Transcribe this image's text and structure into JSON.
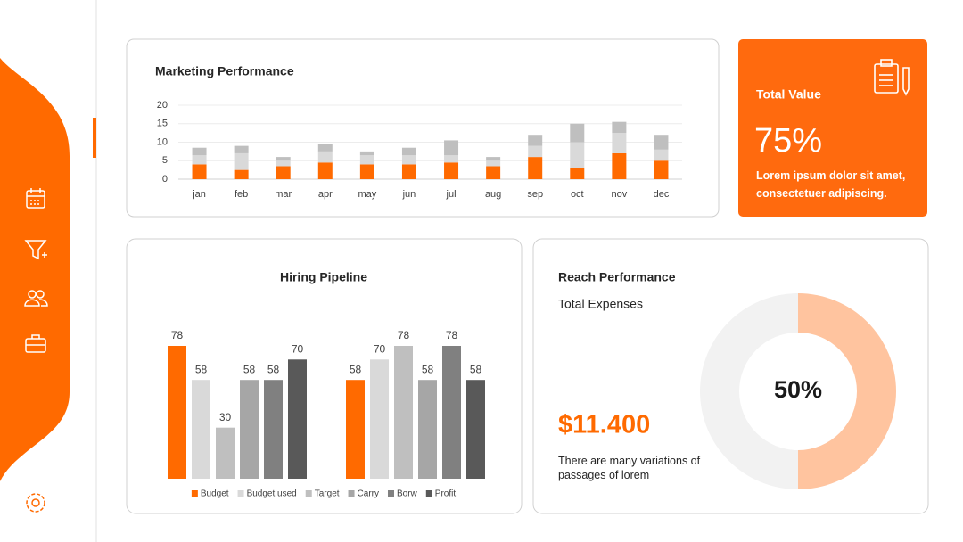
{
  "chart_data": [
    {
      "type": "bar",
      "stacked": true,
      "title": "Marketing Performance",
      "categories": [
        "jan",
        "feb",
        "mar",
        "apr",
        "may",
        "jun",
        "jul",
        "aug",
        "sep",
        "oct",
        "nov",
        "dec"
      ],
      "series": [
        {
          "color": "#ff6a00",
          "values": [
            4,
            2.5,
            3.5,
            4.5,
            4,
            4,
            4.5,
            3.5,
            6,
            3,
            7,
            5
          ]
        },
        {
          "color": "#d9d9d9",
          "values": [
            2.5,
            4.5,
            1.5,
            3,
            2.5,
            2.5,
            2,
            1.5,
            3,
            7,
            5.5,
            3
          ]
        },
        {
          "color": "#bfbfbf",
          "values": [
            2,
            2,
            1,
            2,
            1,
            2,
            4,
            1,
            3,
            5,
            3,
            4
          ]
        }
      ],
      "ylim": [
        0,
        20
      ],
      "yticks": [
        0,
        5,
        10,
        15,
        20
      ],
      "grid": true
    },
    {
      "type": "grouped-bar",
      "title": "Hiring Pipeline",
      "categories": [
        null,
        null
      ],
      "series": [
        {
          "name": "Budget",
          "color": "#ff6a00",
          "values": [
            78,
            58
          ]
        },
        {
          "name": "Budget used",
          "color": "#d9d9d9",
          "values": [
            58,
            70
          ]
        },
        {
          "name": "Target",
          "color": "#bfbfbf",
          "values": [
            30,
            78
          ]
        },
        {
          "name": "Carry",
          "color": "#a6a6a6",
          "values": [
            58,
            58
          ]
        },
        {
          "name": "Borw",
          "color": "#808080",
          "values": [
            58,
            78
          ]
        },
        {
          "name": "Profit",
          "color": "#595959",
          "values": [
            70,
            58
          ]
        }
      ]
    },
    {
      "type": "donut",
      "title": "Reach Performance",
      "values": [
        50,
        50
      ],
      "colors": [
        "#ffc49f",
        "#f2f2f2"
      ],
      "center_label": "50%"
    }
  ],
  "total_value": {
    "title": "Total Value",
    "value": "75%",
    "text": "Lorem ipsum dolor sit amet, consectetuer adipiscing."
  },
  "reach": {
    "subtitle": "Total Expenses",
    "amount": "$11.400",
    "text": "There are many variations of passages of lorem"
  }
}
